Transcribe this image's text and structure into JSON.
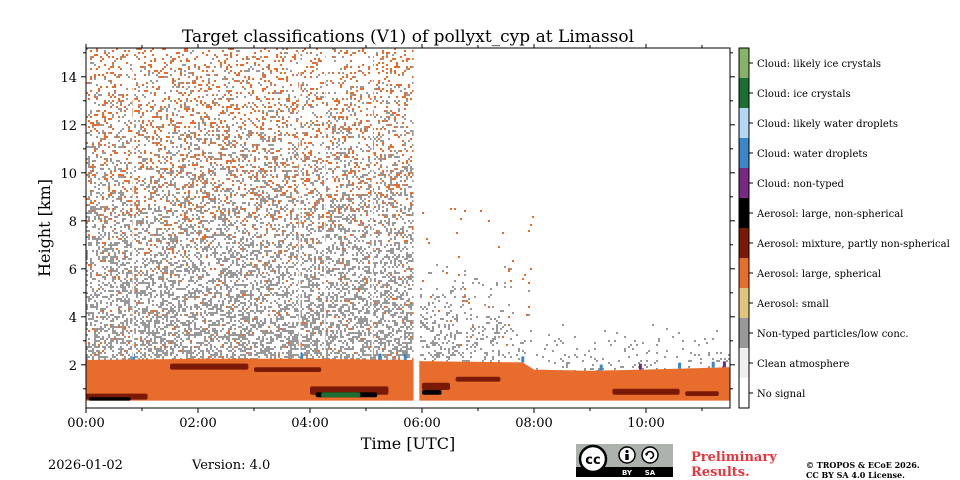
{
  "chart_data": {
    "type": "heatmap",
    "title": "Target classifications (V1) of pollyxt_cyp at Limassol",
    "xlabel": "Time [UTC]",
    "ylabel": "Height [km]",
    "xlim": [
      0,
      11.5
    ],
    "ylim": [
      0.2,
      15.2
    ],
    "x_ticks": [
      0,
      2,
      4,
      6,
      8,
      10
    ],
    "x_tick_labels": [
      "00:00",
      "02:00",
      "04:00",
      "06:00",
      "08:00",
      "10:00"
    ],
    "y_ticks": [
      2,
      4,
      6,
      8,
      10,
      12,
      14
    ],
    "y_tick_labels": [
      "2",
      "4",
      "6",
      "8",
      "10",
      "12",
      "14"
    ],
    "data_gap_hours": [
      5.85,
      5.95
    ],
    "aerosol_layer_top_km": [
      [
        0.0,
        2.2
      ],
      [
        2.0,
        2.25
      ],
      [
        4.0,
        2.25
      ],
      [
        5.85,
        2.2
      ],
      [
        6.0,
        2.15
      ],
      [
        7.8,
        2.1
      ],
      [
        8.0,
        1.8
      ],
      [
        9.0,
        1.75
      ],
      [
        10.0,
        1.8
      ],
      [
        11.5,
        1.9
      ]
    ],
    "colorbar": [
      {
        "label": "Cloud: likely ice crystals",
        "color": "#87b368"
      },
      {
        "label": "Cloud: ice crystals",
        "color": "#1a7032"
      },
      {
        "label": "Cloud: likely water droplets",
        "color": "#b3d9f7"
      },
      {
        "label": "Cloud: water droplets",
        "color": "#3a86c8"
      },
      {
        "label": "Cloud: non-typed",
        "color": "#7b2883"
      },
      {
        "label": "Aerosol: large, non-spherical",
        "color": "#000000"
      },
      {
        "label": "Aerosol: mixture, partly non-spherical",
        "color": "#7a1a06"
      },
      {
        "label": "Aerosol: large, spherical",
        "color": "#e86c2c"
      },
      {
        "label": "Aerosol: small",
        "color": "#e1c57a"
      },
      {
        "label": "Non-typed particles/low conc.",
        "color": "#999999"
      },
      {
        "label": "Clean atmosphere",
        "color": "#f0f0f0"
      },
      {
        "label": "No signal",
        "color": "#ffffff"
      }
    ]
  },
  "footer": {
    "date": "2026-01-02",
    "version": "Version: 4.0",
    "preliminary_line1": "Preliminary",
    "preliminary_line2": "Results.",
    "copyright_line1": "© TROPOS & ECoE 2026.",
    "copyright_line2": "CC BY SA 4.0 License.",
    "badge_cc": "cc",
    "badge_by": "BY",
    "badge_sa": "SA"
  }
}
